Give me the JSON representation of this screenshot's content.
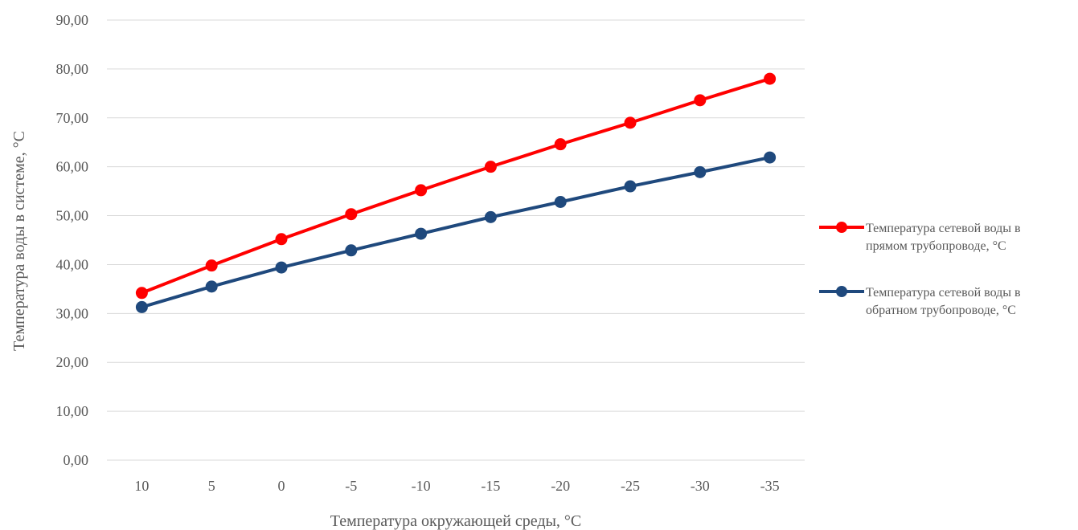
{
  "chart_data": {
    "type": "line",
    "title": "",
    "xlabel": "Температура  окружающей среды, °С",
    "ylabel": "Температура  воды в системе,  °С",
    "categories": [
      "10",
      "5",
      "0",
      "-5",
      "-10",
      "-15",
      "-20",
      "-25",
      "-30",
      "-35"
    ],
    "ylim": [
      0,
      90
    ],
    "yticks": [
      "0,00",
      "10,00",
      "20,00",
      "30,00",
      "40,00",
      "50,00",
      "60,00",
      "70,00",
      "80,00",
      "90,00"
    ],
    "grid": true,
    "legend_position": "right",
    "series": [
      {
        "name_lines": [
          "Температура  сетевой воды в",
          "прямом трубопроводе, °С"
        ],
        "color": "#ff0000",
        "values": [
          34.2,
          39.8,
          45.2,
          50.3,
          55.2,
          60.0,
          64.6,
          69.0,
          73.6,
          78.0
        ]
      },
      {
        "name_lines": [
          "Температура  сетевой воды в",
          "обратном трубопроводе, °С"
        ],
        "color": "#1f497d",
        "values": [
          31.3,
          35.5,
          39.4,
          42.9,
          46.3,
          49.7,
          52.8,
          56.0,
          58.9,
          61.9
        ]
      }
    ]
  }
}
